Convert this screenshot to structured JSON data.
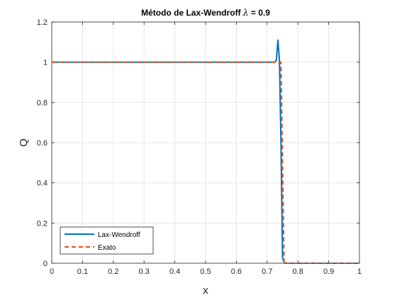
{
  "chart_data": {
    "type": "line",
    "title_main": "Método de Lax-Wendroff ",
    "title_symbol": "λ",
    "title_tail": " = 0.9",
    "xlabel": "x",
    "ylabel": "Q",
    "xlim": [
      0,
      1
    ],
    "ylim": [
      0,
      1.2
    ],
    "xticks": [
      0,
      0.1,
      0.2,
      0.3,
      0.4,
      0.5,
      0.6,
      0.7,
      0.8,
      0.9,
      1
    ],
    "xtick_labels": [
      "0",
      "0.1",
      "0.2",
      "0.3",
      "0.4",
      "0.5",
      "0.6",
      "0.7",
      "0.8",
      "0.9",
      "1"
    ],
    "yticks": [
      0,
      0.2,
      0.4,
      0.6,
      0.8,
      1,
      1.2
    ],
    "ytick_labels": [
      "0",
      "0.2",
      "0.4",
      "0.6",
      "0.8",
      "1",
      "1.2"
    ],
    "grid": true,
    "legend_position": "bottom-left",
    "series": [
      {
        "name": "Lax-Wendroff",
        "color": "#0072BD",
        "style": "solid",
        "x": [
          0,
          0.72,
          0.725,
          0.73,
          0.735,
          0.74,
          0.745,
          0.75,
          0.755,
          0.76,
          0.765,
          0.77,
          1
        ],
        "y": [
          1,
          1,
          1.0,
          1.01,
          1.11,
          1.01,
          0.6,
          0.03,
          0.005,
          0,
          0,
          0,
          0
        ]
      },
      {
        "name": "Exato",
        "color": "#D95319",
        "style": "dashed",
        "x": [
          0,
          0.745,
          0.755,
          1
        ],
        "y": [
          1,
          1,
          0,
          0
        ]
      }
    ]
  }
}
